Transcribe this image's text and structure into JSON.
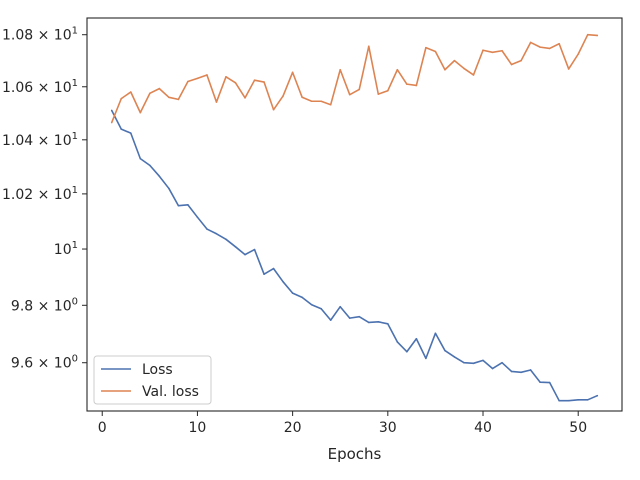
{
  "chart_data": {
    "type": "line",
    "title": "",
    "xlabel": "Epochs",
    "ylabel": "",
    "y_scale": "log",
    "xlim": [
      -1.6,
      54.6
    ],
    "ylim": [
      9.435,
      10.865
    ],
    "grid": false,
    "legend_position": "lower-left",
    "x_ticks": [
      {
        "value": 0,
        "label": "0"
      },
      {
        "value": 10,
        "label": "10"
      },
      {
        "value": 20,
        "label": "20"
      },
      {
        "value": 30,
        "label": "30"
      },
      {
        "value": 40,
        "label": "40"
      },
      {
        "value": 50,
        "label": "50"
      }
    ],
    "y_ticks": [
      {
        "value": 9.6,
        "mantissa": "9.6",
        "exp": "0",
        "plain": false
      },
      {
        "value": 9.8,
        "mantissa": "9.8",
        "exp": "0",
        "plain": false
      },
      {
        "value": 10.0,
        "label": "10",
        "exp": "1",
        "plain": true
      },
      {
        "value": 10.2,
        "mantissa": "1.02",
        "exp": "1",
        "plain": false
      },
      {
        "value": 10.4,
        "mantissa": "1.04",
        "exp": "1",
        "plain": false
      },
      {
        "value": 10.6,
        "mantissa": "1.06",
        "exp": "1",
        "plain": false
      },
      {
        "value": 10.8,
        "mantissa": "1.08",
        "exp": "1",
        "plain": false
      }
    ],
    "x": [
      1,
      2,
      3,
      4,
      5,
      6,
      7,
      8,
      9,
      10,
      11,
      12,
      13,
      14,
      15,
      16,
      17,
      18,
      19,
      20,
      21,
      22,
      23,
      24,
      25,
      26,
      27,
      28,
      29,
      30,
      31,
      32,
      33,
      34,
      35,
      36,
      37,
      38,
      39,
      40,
      41,
      42,
      43,
      44,
      45,
      46,
      47,
      48,
      49,
      50,
      51,
      52
    ],
    "series": [
      {
        "name": "Loss",
        "color": "#4c72b0",
        "values": [
          10.51,
          10.44,
          10.425,
          10.33,
          10.305,
          10.265,
          10.22,
          10.157,
          10.16,
          10.115,
          10.072,
          10.055,
          10.035,
          10.008,
          9.98,
          9.998,
          9.91,
          9.93,
          9.883,
          9.843,
          9.828,
          9.802,
          9.788,
          9.748,
          9.795,
          9.755,
          9.76,
          9.74,
          9.742,
          9.735,
          9.672,
          9.638,
          9.683,
          9.615,
          9.702,
          9.642,
          9.62,
          9.6,
          9.598,
          9.608,
          9.58,
          9.6,
          9.57,
          9.567,
          9.575,
          9.533,
          9.532,
          9.47,
          9.47,
          9.473,
          9.473,
          9.487
        ]
      },
      {
        "name": "Val. loss",
        "color": "#dd8452",
        "values": [
          10.465,
          10.555,
          10.58,
          10.502,
          10.575,
          10.593,
          10.56,
          10.552,
          10.62,
          10.632,
          10.645,
          10.542,
          10.638,
          10.615,
          10.558,
          10.625,
          10.618,
          10.513,
          10.565,
          10.655,
          10.56,
          10.545,
          10.545,
          10.532,
          10.665,
          10.57,
          10.59,
          10.755,
          10.572,
          10.585,
          10.665,
          10.61,
          10.605,
          10.75,
          10.735,
          10.665,
          10.7,
          10.67,
          10.645,
          10.74,
          10.732,
          10.738,
          10.685,
          10.7,
          10.77,
          10.752,
          10.747,
          10.765,
          10.668,
          10.725,
          10.8,
          10.797
        ]
      }
    ]
  }
}
